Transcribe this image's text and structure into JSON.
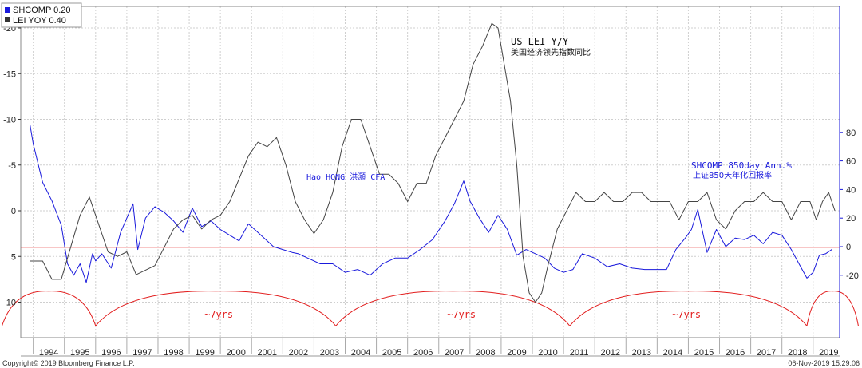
{
  "chart_data": {
    "type": "line",
    "legend": [
      {
        "label": "SHCOMP 0.20",
        "color": "#1a1adc"
      },
      {
        "label": "LEI YOY 0.40",
        "color": "#333333"
      }
    ],
    "left_axis": {
      "ticks": [
        "-20",
        "-15",
        "-10",
        "-5",
        "0",
        "5",
        "10"
      ],
      "values": [
        -20,
        -15,
        -10,
        -5,
        0,
        5,
        10
      ],
      "inverted": true,
      "color": "#222222"
    },
    "right_axis": {
      "ticks": [
        "80",
        "60",
        "40",
        "20",
        "0",
        "-20"
      ],
      "values": [
        80,
        60,
        40,
        20,
        0,
        -20
      ],
      "color": "#1a1adc"
    },
    "x_ticks": [
      "1994",
      "1995",
      "1996",
      "1997",
      "1998",
      "1999",
      "2000",
      "2001",
      "2002",
      "2003",
      "2004",
      "2005",
      "2006",
      "2007",
      "2008",
      "2009",
      "2010",
      "2011",
      "2012",
      "2013",
      "2014",
      "2015",
      "2016",
      "2017",
      "2018",
      "2019"
    ],
    "series": [
      {
        "name": "SHCOMP 850day Ann.%",
        "axis": "right",
        "color": "#1a1adc",
        "x": [
          1993.9,
          1994.0,
          1994.3,
          1994.6,
          1994.9,
          1995.1,
          1995.3,
          1995.5,
          1995.7,
          1995.9,
          1996.0,
          1996.2,
          1996.5,
          1996.8,
          1997.0,
          1997.2,
          1997.35,
          1997.6,
          1997.9,
          1998.2,
          1998.5,
          1998.8,
          1999.1,
          1999.4,
          1999.7,
          2000.0,
          2000.3,
          2000.6,
          2000.9,
          2001.1,
          2001.4,
          2001.7,
          2002.0,
          2002.3,
          2002.5,
          2002.8,
          2003.2,
          2003.6,
          2004.0,
          2004.4,
          2004.8,
          2005.2,
          2005.6,
          2006.0,
          2006.4,
          2006.8,
          2007.2,
          2007.5,
          2007.8,
          2008.0,
          2008.3,
          2008.6,
          2008.9,
          2009.2,
          2009.5,
          2009.8,
          2010.1,
          2010.4,
          2010.7,
          2011.0,
          2011.3,
          2011.6,
          2012.0,
          2012.4,
          2012.8,
          2013.2,
          2013.6,
          2014.0,
          2014.3,
          2014.6,
          2014.9,
          2015.1,
          2015.3,
          2015.6,
          2015.9,
          2016.2,
          2016.5,
          2016.8,
          2017.1,
          2017.4,
          2017.7,
          2018.0,
          2018.3,
          2018.6,
          2018.8,
          2019.0,
          2019.2,
          2019.4,
          2019.6
        ],
        "y": [
          85,
          72,
          45,
          32,
          15,
          -12,
          -20,
          -12,
          -25,
          -5,
          -10,
          -5,
          -15,
          10,
          20,
          30,
          -2,
          20,
          28,
          24,
          18,
          10,
          27,
          14,
          18,
          12,
          8,
          4,
          16,
          12,
          6,
          0,
          -2,
          -4,
          -5,
          -8,
          -12,
          -12,
          -18,
          -16,
          -20,
          -12,
          -8,
          -8,
          -2,
          5,
          18,
          30,
          46,
          32,
          20,
          10,
          22,
          12,
          -6,
          -2,
          -5,
          -8,
          -15,
          -18,
          -16,
          -5,
          -8,
          -14,
          -12,
          -15,
          -16,
          -16,
          -16,
          -2,
          6,
          12,
          26,
          -4,
          12,
          0,
          6,
          5,
          8,
          2,
          10,
          8,
          -2,
          -14,
          -22,
          -18,
          -6,
          -5,
          -2
        ]
      },
      {
        "name": "US LEI Y/Y",
        "axis": "left",
        "color": "#444444",
        "x": [
          1993.9,
          1994.3,
          1994.6,
          1994.9,
          1995.2,
          1995.5,
          1995.8,
          1996.1,
          1996.4,
          1996.7,
          1997.0,
          1997.3,
          1997.6,
          1997.9,
          1998.2,
          1998.5,
          1998.8,
          1999.1,
          1999.4,
          1999.7,
          2000.0,
          2000.3,
          2000.6,
          2000.9,
          2001.2,
          2001.5,
          2001.8,
          2002.1,
          2002.4,
          2002.7,
          2003.0,
          2003.3,
          2003.6,
          2003.9,
          2004.2,
          2004.5,
          2004.8,
          2005.1,
          2005.4,
          2005.7,
          2006.0,
          2006.3,
          2006.6,
          2006.9,
          2007.2,
          2007.5,
          2007.8,
          2008.1,
          2008.4,
          2008.7,
          2008.9,
          2009.1,
          2009.3,
          2009.5,
          2009.7,
          2009.9,
          2010.1,
          2010.3,
          2010.5,
          2010.8,
          2011.1,
          2011.4,
          2011.7,
          2012.0,
          2012.3,
          2012.6,
          2012.9,
          2013.2,
          2013.5,
          2013.8,
          2014.1,
          2014.4,
          2014.7,
          2015.0,
          2015.3,
          2015.6,
          2015.9,
          2016.2,
          2016.5,
          2016.8,
          2017.1,
          2017.4,
          2017.7,
          2018.0,
          2018.3,
          2018.6,
          2018.9,
          2019.1,
          2019.3,
          2019.5,
          2019.7
        ],
        "y": [
          5.5,
          5.5,
          7.5,
          7.5,
          4,
          0.5,
          -1.5,
          1.5,
          4.5,
          5,
          4.5,
          7,
          6.5,
          6,
          4,
          2,
          1,
          0.5,
          2,
          1,
          0.5,
          -1,
          -3.5,
          -6,
          -7.5,
          -7,
          -8,
          -5,
          -1,
          1,
          2.5,
          1,
          -2,
          -7,
          -10,
          -10,
          -7,
          -4,
          -4,
          -3,
          -1,
          -3,
          -3,
          -6,
          -8,
          -10,
          -12,
          -16,
          -18,
          -20.5,
          -20,
          -16,
          -12,
          -5,
          5,
          9,
          10,
          9,
          6,
          2,
          0,
          -2,
          -1,
          -1,
          -2,
          -1,
          -1,
          -2,
          -2,
          -1,
          -1,
          -1,
          1,
          -1,
          -1,
          -2,
          1,
          2,
          0,
          -1,
          -1,
          -2,
          -1,
          -1,
          1,
          -1,
          -1,
          1,
          -1,
          -2,
          0
        ]
      }
    ],
    "reference_line": {
      "axis": "left",
      "value": 4,
      "color": "#e21d1d"
    },
    "cycle_arcs": {
      "axis": "left",
      "baseline": 8.8,
      "bottom": 12.6,
      "cusps": [
        1996.0,
        2003.7,
        2011.2,
        2018.8
      ],
      "color": "#e21d1d"
    },
    "annotations": [
      {
        "id": "lei-title",
        "text": "US LEI Y/Y",
        "color": "#111111"
      },
      {
        "id": "lei-subtitle",
        "text": "美国经济领先指数同比",
        "color": "#111111"
      },
      {
        "id": "shcomp-title",
        "text": "SHCOMP 850day Ann.%",
        "color": "#1a1adc"
      },
      {
        "id": "shcomp-subtitle",
        "text": "上证850天年化回报率",
        "color": "#1a1adc"
      },
      {
        "id": "author",
        "text": "Hao HONG 洪灝 CFA",
        "color": "#1a1adc"
      },
      {
        "id": "cycle-1",
        "text": "~7yrs",
        "color": "#e21d1d"
      },
      {
        "id": "cycle-2",
        "text": "~7yrs",
        "color": "#e21d1d"
      },
      {
        "id": "cycle-3",
        "text": "~7yrs",
        "color": "#e21d1d"
      }
    ],
    "footer_left": "Copyright© 2019 Bloomberg Finance L.P.",
    "footer_right": "06-Nov-2019 15:29:06"
  }
}
